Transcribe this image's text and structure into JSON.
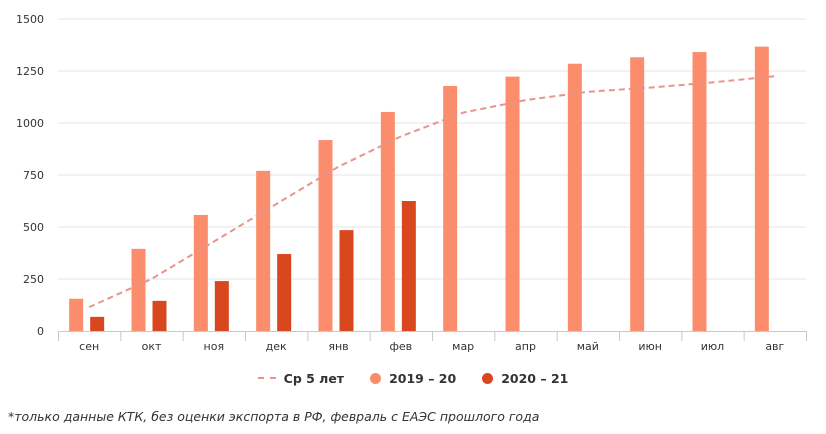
{
  "chart_data": {
    "type": "bar",
    "categories": [
      "сен",
      "окт",
      "ноя",
      "дек",
      "янв",
      "фев",
      "мар",
      "апр",
      "май",
      "июн",
      "июл",
      "авг"
    ],
    "series": [
      {
        "name": "2019 – 20",
        "type": "bar",
        "color": "#fb8d6c",
        "values": [
          155,
          395,
          558,
          770,
          918,
          1053,
          1178,
          1223,
          1285,
          1316,
          1341,
          1367
        ]
      },
      {
        "name": "2020 – 21",
        "type": "bar",
        "color": "#d9471f",
        "values": [
          68,
          145,
          240,
          370,
          485,
          625,
          null,
          null,
          null,
          null,
          null,
          null
        ]
      },
      {
        "name": "Ср 5 лет",
        "type": "line",
        "style": "dashed",
        "color": "#e8948d",
        "values": [
          115,
          250,
          430,
          610,
          790,
          935,
          1050,
          1110,
          1150,
          1170,
          1195,
          1225
        ]
      }
    ],
    "yticks": [
      0,
      250,
      500,
      750,
      1000,
      1250,
      1500
    ],
    "ylim": [
      0,
      1500
    ],
    "grid": true,
    "legend_position": "bottom",
    "title": "",
    "xlabel": "",
    "ylabel": ""
  },
  "legend": {
    "avg_label": "Ср 5 лет",
    "s1_label": "2019 – 20",
    "s2_label": "2020 – 21"
  },
  "footnote": "*только данные КТК, без оценки экспорта в РФ, февраль с ЕАЭС прошлого года"
}
